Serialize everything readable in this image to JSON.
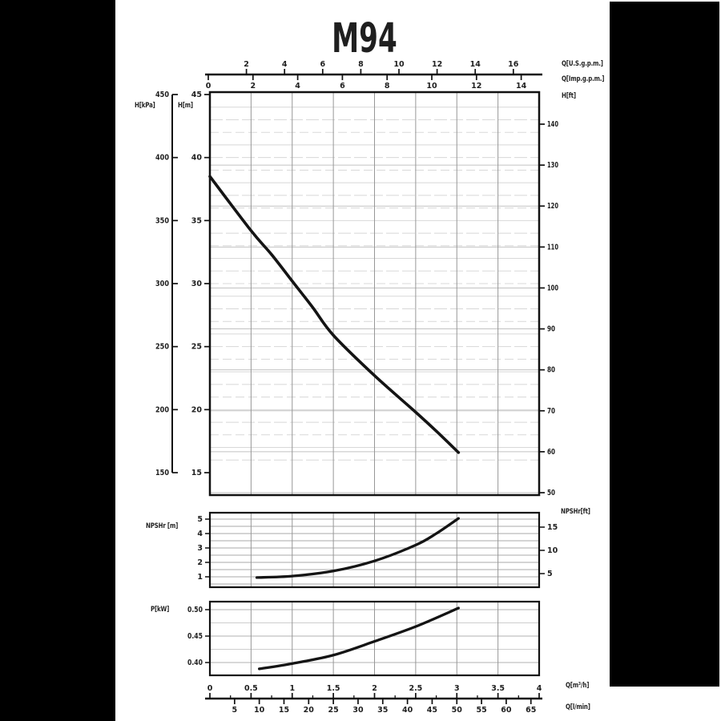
{
  "title": "M94",
  "axes_labels": {
    "q_usgpm": "Q[U.S.g.p.m.]",
    "q_impgpm": "Q[Imp.g.p.m.]",
    "h_ft": "H[ft]",
    "h_kpa": "H[kPa]",
    "h_m": "H[m]",
    "npshr_m": "NPSHr [m]",
    "npshr_ft": "NPSHr[ft]",
    "p_kw": "P[kW]",
    "q_m3h": "Q[m³/h]",
    "q_lmin": "Q[l/min]"
  },
  "colors": {
    "curve": "#141414",
    "frame": "#111111",
    "grid_vertical": "#979797",
    "grid_horizontal_light": "#d8d8d8",
    "grid_horizontal_mid": "#c2c2c2",
    "scan_bar": "#000000"
  },
  "chart_data": [
    {
      "id": "head_curve",
      "type": "line",
      "title": "M94",
      "xlabel": "Q[m³/h]",
      "ylabel": "H[m]",
      "x_range_m3h": [
        0,
        4
      ],
      "y_range_m": [
        15,
        45
      ],
      "top_us_gpm_ticks": [
        2,
        4,
        6,
        8,
        10,
        12,
        14,
        16
      ],
      "top_imp_gpm_ticks": [
        0,
        2,
        4,
        6,
        8,
        10,
        12,
        14
      ],
      "left_kpa_ticks": [
        450,
        400,
        350,
        300,
        250,
        200,
        150
      ],
      "left_m_ticks": [
        45,
        40,
        35,
        30,
        25,
        20,
        15
      ],
      "right_ft_ticks": [
        140,
        130,
        120,
        110,
        100,
        90,
        80,
        70,
        60,
        50
      ],
      "series": [
        {
          "name": "head",
          "x_m3h": [
            0,
            0.5,
            0.75,
            1.0,
            1.25,
            1.5,
            2.0,
            2.5,
            2.75,
            3.02
          ],
          "y_m": [
            38.5,
            34.2,
            32.3,
            30.2,
            28.1,
            25.9,
            22.7,
            19.8,
            18.3,
            16.6
          ]
        }
      ]
    },
    {
      "id": "npshr_curve",
      "type": "line",
      "ylabel": "NPSHr [m]",
      "y_range_m": [
        0.28,
        5.44
      ],
      "left_m_ticks": [
        5,
        4,
        3,
        2,
        1
      ],
      "right_ft_ticks": [
        15,
        10,
        5
      ],
      "series": [
        {
          "name": "npshr",
          "x_m3h": [
            0.57,
            1.0,
            1.5,
            2.0,
            2.5,
            2.75,
            3.02
          ],
          "y_m": [
            0.95,
            1.05,
            1.4,
            2.1,
            3.2,
            4.0,
            5.05
          ]
        }
      ]
    },
    {
      "id": "power_curve",
      "type": "line",
      "ylabel": "P[kW]",
      "y_range_kw": [
        0.376,
        0.515
      ],
      "left_kw_ticks": [
        "0.50",
        "0.45",
        "0.40"
      ],
      "series": [
        {
          "name": "power",
          "x_m3h": [
            0.6,
            1.0,
            1.5,
            2.0,
            2.5,
            3.02
          ],
          "y_kw": [
            0.388,
            0.398,
            0.414,
            0.44,
            0.468,
            0.503
          ]
        }
      ]
    },
    {
      "id": "flow_axis",
      "type": "axis",
      "bottom_m3h_ticks": [
        0,
        0.5,
        1,
        1.5,
        2,
        2.5,
        3,
        3.5,
        4
      ],
      "bottom_lmin_ticks": [
        5,
        10,
        15,
        20,
        25,
        30,
        35,
        40,
        45,
        50,
        55,
        60,
        65
      ]
    }
  ]
}
